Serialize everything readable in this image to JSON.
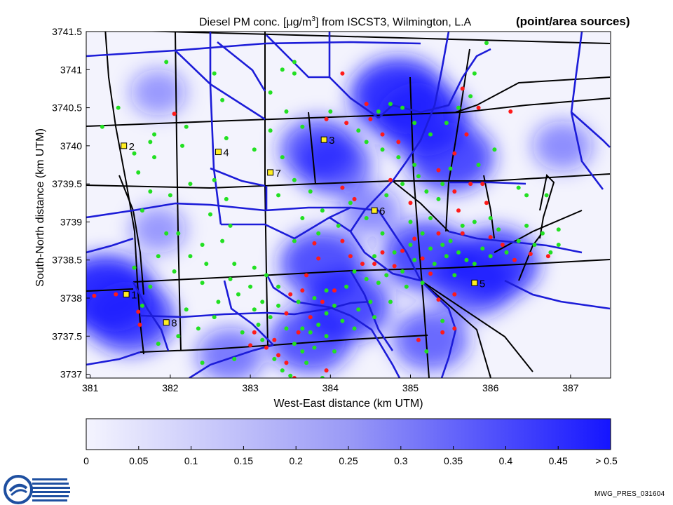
{
  "header": {
    "title_prefix": "Diesel PM conc. [",
    "title_mu": "μ",
    "title_unit": "g/m",
    "title_sup": "3",
    "title_suffix": "] from ISCST3, Wilmington, L.A",
    "subtitle": "(point/area sources)"
  },
  "footer": {
    "code": "MWG_PRES_031604"
  },
  "chart_data": {
    "type": "heatmap",
    "title": "Diesel PM conc. [μg/m3] from ISCST3, Wilmington, L.A",
    "xlabel": "West-East distance (km UTM)",
    "ylabel": "South-North distance (km UTM)",
    "xlim": [
      380.95,
      387.5
    ],
    "ylim": [
      3736.95,
      3741.5
    ],
    "xticks": [
      381,
      382,
      383,
      384,
      385,
      386,
      387
    ],
    "yticks": [
      3737,
      3737.5,
      3738,
      3738.5,
      3739,
      3739.5,
      3740,
      3740.5,
      3741,
      3741.5
    ],
    "colorbar": {
      "min": 0,
      "max": 0.5,
      "ticks": [
        "0",
        "0.05",
        "0.1",
        "0.15",
        "0.2",
        "0.25",
        "0.3",
        "0.35",
        "0.4",
        "0.45",
        "> 0.5"
      ],
      "low_color": "#f4f4fe",
      "high_color": "#1a1aff"
    },
    "concentration_hotspots": [
      {
        "x": 381.2,
        "y": 3738.05,
        "value": 0.5
      },
      {
        "x": 381.5,
        "y": 3737.75,
        "value": 0.42
      },
      {
        "x": 384.85,
        "y": 3740.65,
        "value": 0.48
      },
      {
        "x": 385.15,
        "y": 3740.35,
        "value": 0.45
      },
      {
        "x": 385.5,
        "y": 3739.85,
        "value": 0.4
      },
      {
        "x": 383.85,
        "y": 3739.95,
        "value": 0.32
      },
      {
        "x": 384.05,
        "y": 3739.75,
        "value": 0.3
      },
      {
        "x": 385.2,
        "y": 3738.55,
        "value": 0.4
      },
      {
        "x": 386.05,
        "y": 3738.45,
        "value": 0.42
      },
      {
        "x": 385.8,
        "y": 3738.2,
        "value": 0.35
      },
      {
        "x": 383.9,
        "y": 3738.45,
        "value": 0.38
      },
      {
        "x": 384.2,
        "y": 3737.9,
        "value": 0.4
      },
      {
        "x": 383.75,
        "y": 3737.45,
        "value": 0.36
      },
      {
        "x": 385.25,
        "y": 3737.45,
        "value": 0.3
      },
      {
        "x": 382.75,
        "y": 3737.25,
        "value": 0.22
      },
      {
        "x": 381.85,
        "y": 3738.9,
        "value": 0.12
      },
      {
        "x": 381.85,
        "y": 3740.7,
        "value": 0.12
      },
      {
        "x": 386.9,
        "y": 3740.0,
        "value": 0.16
      },
      {
        "x": 384.5,
        "y": 3739.15,
        "value": 0.16
      }
    ],
    "receptor_sites": [
      {
        "label": "2",
        "x": 381.42,
        "y": 3740.0
      },
      {
        "label": "4",
        "x": 382.6,
        "y": 3739.92
      },
      {
        "label": "3",
        "x": 383.92,
        "y": 3740.08
      },
      {
        "label": "7",
        "x": 383.25,
        "y": 3739.65
      },
      {
        "label": "6",
        "x": 384.55,
        "y": 3739.15
      },
      {
        "label": "1",
        "x": 381.45,
        "y": 3738.05
      },
      {
        "label": "8",
        "x": 381.95,
        "y": 3737.68
      },
      {
        "label": "5",
        "x": 385.8,
        "y": 3738.2
      }
    ],
    "point_sources_red": [
      [
        381.05,
        3738.03
      ],
      [
        381.32,
        3738.05
      ],
      [
        381.62,
        3737.65
      ],
      [
        381.6,
        3737.82
      ],
      [
        382.05,
        3740.42
      ],
      [
        383.05,
        3737.55
      ],
      [
        383.2,
        3737.35
      ],
      [
        383.35,
        3737.25
      ],
      [
        383.45,
        3737.15
      ],
      [
        383.0,
        3737.38
      ],
      [
        383.3,
        3737.45
      ],
      [
        383.6,
        3737.55
      ],
      [
        383.75,
        3737.75
      ],
      [
        383.9,
        3737.95
      ],
      [
        384.05,
        3738.1
      ],
      [
        383.7,
        3738.3
      ],
      [
        383.85,
        3738.52
      ],
      [
        383.8,
        3738.72
      ],
      [
        383.5,
        3738.05
      ],
      [
        383.65,
        3738.1
      ],
      [
        384.15,
        3738.75
      ],
      [
        384.25,
        3738.55
      ],
      [
        384.4,
        3738.45
      ],
      [
        384.55,
        3738.45
      ],
      [
        384.65,
        3738.6
      ],
      [
        384.8,
        3738.42
      ],
      [
        384.9,
        3738.62
      ],
      [
        385.05,
        3738.78
      ],
      [
        385.15,
        3738.52
      ],
      [
        385.25,
        3738.32
      ],
      [
        385.35,
        3738.85
      ],
      [
        385.55,
        3738.05
      ],
      [
        385.35,
        3737.98
      ],
      [
        385.6,
        3739.15
      ],
      [
        385.55,
        3739.4
      ],
      [
        385.75,
        3739.5
      ],
      [
        385.9,
        3739.5
      ],
      [
        385.95,
        3739.25
      ],
      [
        386.15,
        3738.7
      ],
      [
        386.3,
        3738.5
      ],
      [
        386.0,
        3738.8
      ],
      [
        386.5,
        3738.58
      ],
      [
        386.72,
        3738.55
      ],
      [
        385.65,
        3738.85
      ],
      [
        385.0,
        3739.25
      ],
      [
        385.35,
        3739.68
      ],
      [
        385.55,
        3739.9
      ],
      [
        385.7,
        3740.15
      ],
      [
        386.25,
        3740.45
      ],
      [
        384.85,
        3740.05
      ],
      [
        384.2,
        3740.3
      ],
      [
        384.45,
        3740.55
      ],
      [
        384.5,
        3740.35
      ],
      [
        383.95,
        3740.35
      ],
      [
        384.65,
        3740.15
      ],
      [
        384.15,
        3739.45
      ],
      [
        383.45,
        3737.8
      ],
      [
        383.95,
        3737.05
      ],
      [
        383.55,
        3736.95
      ],
      [
        385.1,
        3737.45
      ],
      [
        385.4,
        3737.55
      ],
      [
        385.55,
        3737.6
      ],
      [
        384.15,
        3740.95
      ],
      [
        385.65,
        3740.75
      ],
      [
        385.85,
        3740.5
      ],
      [
        384.75,
        3739.55
      ],
      [
        384.3,
        3739.3
      ]
    ],
    "point_sources_green": [
      [
        381.15,
        3740.25
      ],
      [
        381.35,
        3740.5
      ],
      [
        381.55,
        3739.9
      ],
      [
        381.6,
        3739.65
      ],
      [
        381.75,
        3739.4
      ],
      [
        381.65,
        3739.15
      ],
      [
        381.95,
        3738.85
      ],
      [
        382.1,
        3738.85
      ],
      [
        382.0,
        3739.35
      ],
      [
        381.8,
        3739.85
      ],
      [
        382.15,
        3740.0
      ],
      [
        382.25,
        3739.5
      ],
      [
        382.55,
        3739.55
      ],
      [
        382.7,
        3739.3
      ],
      [
        382.5,
        3739.1
      ],
      [
        382.75,
        3738.95
      ],
      [
        382.65,
        3738.75
      ],
      [
        382.4,
        3738.7
      ],
      [
        382.25,
        3738.55
      ],
      [
        382.4,
        3738.2
      ],
      [
        382.75,
        3738.25
      ],
      [
        382.85,
        3738.05
      ],
      [
        383.0,
        3738.15
      ],
      [
        383.15,
        3737.95
      ],
      [
        383.25,
        3737.75
      ],
      [
        383.1,
        3737.65
      ],
      [
        383.35,
        3737.9
      ],
      [
        383.45,
        3737.6
      ],
      [
        383.55,
        3737.4
      ],
      [
        383.65,
        3737.3
      ],
      [
        383.7,
        3737.15
      ],
      [
        383.4,
        3737.05
      ],
      [
        383.5,
        3736.98
      ],
      [
        383.75,
        3737.55
      ],
      [
        383.85,
        3737.65
      ],
      [
        383.95,
        3737.8
      ],
      [
        384.05,
        3737.9
      ],
      [
        384.2,
        3738.15
      ],
      [
        384.3,
        3738.35
      ],
      [
        384.45,
        3738.25
      ],
      [
        384.55,
        3738.55
      ],
      [
        384.6,
        3738.2
      ],
      [
        384.7,
        3738.3
      ],
      [
        384.8,
        3738.6
      ],
      [
        384.9,
        3738.35
      ],
      [
        385.0,
        3738.7
      ],
      [
        385.05,
        3738.5
      ],
      [
        385.15,
        3738.85
      ],
      [
        385.25,
        3738.65
      ],
      [
        385.3,
        3738.45
      ],
      [
        385.4,
        3738.7
      ],
      [
        385.45,
        3738.55
      ],
      [
        385.5,
        3738.75
      ],
      [
        385.6,
        3738.6
      ],
      [
        385.7,
        3738.5
      ],
      [
        385.8,
        3738.45
      ],
      [
        385.9,
        3738.65
      ],
      [
        386.0,
        3738.55
      ],
      [
        386.1,
        3738.9
      ],
      [
        386.2,
        3738.6
      ],
      [
        386.35,
        3738.75
      ],
      [
        386.45,
        3738.95
      ],
      [
        386.55,
        3738.7
      ],
      [
        386.65,
        3738.85
      ],
      [
        386.75,
        3738.6
      ],
      [
        386.85,
        3738.7
      ],
      [
        385.55,
        3738.3
      ],
      [
        385.15,
        3738.2
      ],
      [
        384.95,
        3738.15
      ],
      [
        384.75,
        3737.95
      ],
      [
        384.5,
        3737.95
      ],
      [
        384.35,
        3737.85
      ],
      [
        384.15,
        3737.7
      ],
      [
        383.95,
        3737.5
      ],
      [
        383.8,
        3737.35
      ],
      [
        383.65,
        3737.6
      ],
      [
        383.3,
        3737.2
      ],
      [
        383.15,
        3737.45
      ],
      [
        383.05,
        3737.85
      ],
      [
        382.9,
        3737.55
      ],
      [
        382.6,
        3737.95
      ],
      [
        382.35,
        3737.6
      ],
      [
        382.1,
        3737.5
      ],
      [
        381.85,
        3737.4
      ],
      [
        381.65,
        3737.9
      ],
      [
        381.75,
        3738.15
      ],
      [
        381.55,
        3738.4
      ],
      [
        381.85,
        3738.55
      ],
      [
        382.05,
        3738.35
      ],
      [
        381.75,
        3740.05
      ],
      [
        381.8,
        3740.15
      ],
      [
        382.2,
        3740.25
      ],
      [
        382.7,
        3740.1
      ],
      [
        383.45,
        3740.45
      ],
      [
        383.65,
        3740.25
      ],
      [
        383.25,
        3740.2
      ],
      [
        383.05,
        3739.95
      ],
      [
        383.4,
        3739.85
      ],
      [
        383.55,
        3739.55
      ],
      [
        383.75,
        3739.4
      ],
      [
        383.35,
        3739.35
      ],
      [
        383.65,
        3739.05
      ],
      [
        383.9,
        3739.15
      ],
      [
        384.1,
        3738.95
      ],
      [
        384.45,
        3739.05
      ],
      [
        384.7,
        3739.35
      ],
      [
        384.9,
        3739.5
      ],
      [
        385.1,
        3739.6
      ],
      [
        385.2,
        3739.4
      ],
      [
        385.35,
        3739.3
      ],
      [
        385.4,
        3739.5
      ],
      [
        385.5,
        3739.7
      ],
      [
        385.05,
        3739.75
      ],
      [
        384.85,
        3739.85
      ],
      [
        384.65,
        3739.95
      ],
      [
        384.45,
        3740.05
      ],
      [
        384.35,
        3740.2
      ],
      [
        384.6,
        3740.45
      ],
      [
        384.75,
        3740.55
      ],
      [
        384.9,
        3740.5
      ],
      [
        385.05,
        3740.3
      ],
      [
        385.25,
        3740.15
      ],
      [
        385.45,
        3740.3
      ],
      [
        385.6,
        3740.5
      ],
      [
        385.75,
        3740.65
      ],
      [
        385.8,
        3740.95
      ],
      [
        385.95,
        3741.35
      ],
      [
        386.05,
        3739.95
      ],
      [
        385.85,
        3739.75
      ],
      [
        386.35,
        3739.45
      ],
      [
        386.45,
        3739.35
      ],
      [
        386.7,
        3739.35
      ],
      [
        386.85,
        3738.9
      ],
      [
        386.0,
        3739.05
      ],
      [
        385.8,
        3739.0
      ],
      [
        385.65,
        3738.95
      ],
      [
        385.25,
        3739.05
      ],
      [
        385.0,
        3739.0
      ],
      [
        384.65,
        3738.85
      ],
      [
        384.25,
        3739.25
      ],
      [
        383.85,
        3738.85
      ],
      [
        383.55,
        3738.75
      ],
      [
        383.95,
        3738.1
      ],
      [
        383.8,
        3738.0
      ],
      [
        383.6,
        3737.95
      ],
      [
        383.35,
        3738.15
      ],
      [
        383.2,
        3738.3
      ],
      [
        383.05,
        3738.4
      ],
      [
        382.8,
        3738.45
      ],
      [
        382.45,
        3738.45
      ],
      [
        382.55,
        3737.75
      ],
      [
        382.2,
        3737.85
      ],
      [
        382.8,
        3737.2
      ],
      [
        382.4,
        3737.15
      ],
      [
        383.9,
        3736.95
      ],
      [
        384.05,
        3737.3
      ],
      [
        384.3,
        3737.6
      ],
      [
        384.55,
        3737.75
      ],
      [
        385.2,
        3737.3
      ],
      [
        385.4,
        3737.7
      ],
      [
        383.25,
        3740.7
      ],
      [
        383.4,
        3741.0
      ],
      [
        383.55,
        3740.95
      ],
      [
        383.55,
        3741.1
      ],
      [
        384.0,
        3740.45
      ],
      [
        382.55,
        3740.95
      ],
      [
        382.65,
        3740.6
      ],
      [
        381.95,
        3741.1
      ]
    ]
  }
}
